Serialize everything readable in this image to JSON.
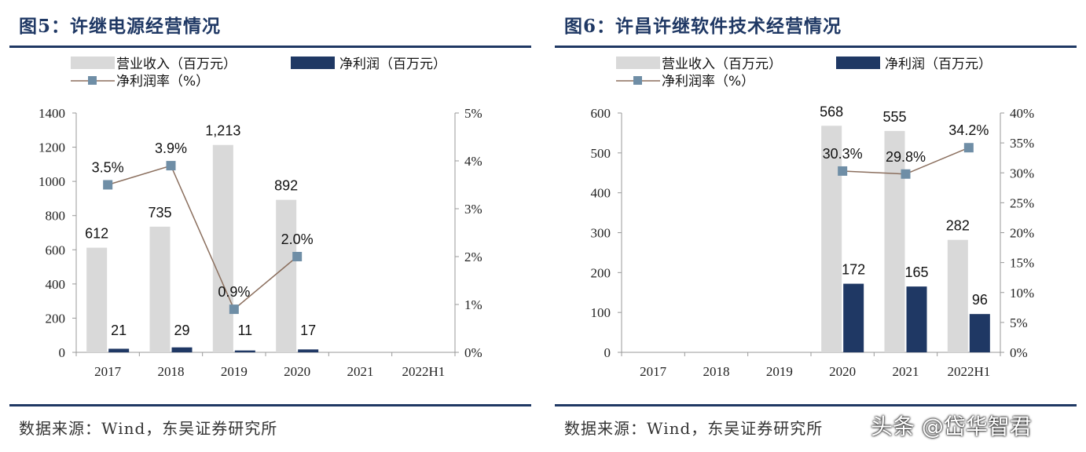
{
  "watermark": "头条 @岱华智君",
  "chart_data": [
    {
      "type": "bar",
      "title": "图5：许继电源经营情况",
      "source": "数据来源：Wind，东吴证券研究所",
      "categories": [
        "2017",
        "2018",
        "2019",
        "2020",
        "2021",
        "2022H1"
      ],
      "series": [
        {
          "name": "营业收入（百万元）",
          "type": "bar",
          "axis": "left",
          "color": "#d9d9d9",
          "values": [
            612,
            735,
            1213,
            892,
            null,
            null
          ],
          "labels": [
            "612",
            "735",
            "1,213",
            "892",
            "",
            ""
          ]
        },
        {
          "name": "净利润（百万元）",
          "type": "bar",
          "axis": "left",
          "color": "#1f3864",
          "values": [
            21,
            29,
            11,
            17,
            null,
            null
          ],
          "labels": [
            "21",
            "29",
            "11",
            "17",
            "",
            ""
          ]
        },
        {
          "name": "净利润率（%）",
          "type": "line",
          "axis": "right",
          "color": "#8b6f5e",
          "marker_color": "#6f8ea6",
          "values": [
            3.5,
            3.9,
            0.9,
            2.0,
            null,
            null
          ],
          "labels": [
            "3.5%",
            "3.9%",
            "0.9%",
            "2.0%",
            "",
            ""
          ]
        }
      ],
      "ylim_left": [
        0,
        1400
      ],
      "yticks_left": [
        "0",
        "200",
        "400",
        "600",
        "800",
        "1000",
        "1200",
        "1400"
      ],
      "ylim_right": [
        0,
        5
      ],
      "yticks_right": [
        "0%",
        "1%",
        "2%",
        "3%",
        "4%",
        "5%"
      ],
      "grid": false,
      "legend": "top-left"
    },
    {
      "type": "bar",
      "title": "图6：许昌许继软件技术经营情况",
      "source": "数据来源：Wind，东吴证券研究所",
      "categories": [
        "2017",
        "2018",
        "2019",
        "2020",
        "2021",
        "2022H1"
      ],
      "series": [
        {
          "name": "营业收入（百万元）",
          "type": "bar",
          "axis": "left",
          "color": "#d9d9d9",
          "values": [
            null,
            null,
            null,
            568,
            555,
            282
          ],
          "labels": [
            "",
            "",
            "",
            "568",
            "555",
            "282"
          ]
        },
        {
          "name": "净利润（百万元）",
          "type": "bar",
          "axis": "left",
          "color": "#1f3864",
          "values": [
            null,
            null,
            null,
            172,
            165,
            96
          ],
          "labels": [
            "",
            "",
            "",
            "172",
            "165",
            "96"
          ]
        },
        {
          "name": "净利润率（%）",
          "type": "line",
          "axis": "right",
          "color": "#8b6f5e",
          "marker_color": "#6f8ea6",
          "values": [
            null,
            null,
            null,
            30.3,
            29.8,
            34.2
          ],
          "labels": [
            "",
            "",
            "",
            "30.3%",
            "29.8%",
            "34.2%"
          ]
        }
      ],
      "ylim_left": [
        0,
        600
      ],
      "yticks_left": [
        "0",
        "100",
        "200",
        "300",
        "400",
        "500",
        "600"
      ],
      "ylim_right": [
        0,
        40
      ],
      "yticks_right": [
        "0%",
        "5%",
        "10%",
        "15%",
        "20%",
        "25%",
        "30%",
        "35%",
        "40%"
      ],
      "grid": false,
      "legend": "top-left"
    }
  ]
}
